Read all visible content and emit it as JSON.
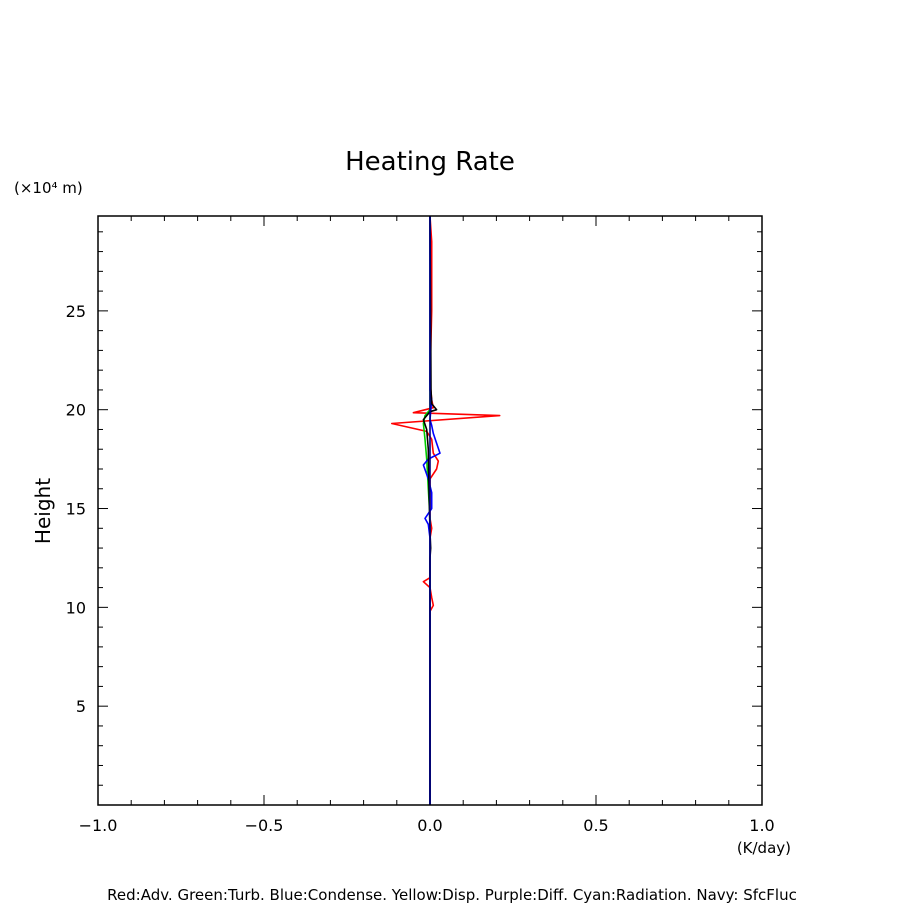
{
  "chart_data": {
    "type": "line",
    "title": "Heating Rate",
    "ylabel": "Height",
    "y_unit": "(×10⁴ m)",
    "x_unit": "(K/day)",
    "xlim": [
      -1.0,
      1.0
    ],
    "ylim": [
      0,
      29.8
    ],
    "x_ticks": [
      {
        "value": -1.0,
        "label": "−1.0"
      },
      {
        "value": -0.5,
        "label": "−0.5"
      },
      {
        "value": 0.0,
        "label": "0.0"
      },
      {
        "value": 0.5,
        "label": "0.5"
      },
      {
        "value": 1.0,
        "label": "1.0"
      }
    ],
    "y_ticks": [
      {
        "value": 5,
        "label": "5"
      },
      {
        "value": 10,
        "label": "10"
      },
      {
        "value": 15,
        "label": "15"
      },
      {
        "value": 20,
        "label": "20"
      },
      {
        "value": 25,
        "label": "25"
      }
    ],
    "grid": false,
    "legend_text": "Red:Adv. Green:Turb. Blue:Condense. Yellow:Disp. Purple:Diff. Cyan:Radiation. Navy: SfcFluc",
    "series": [
      {
        "color": "#ff0000",
        "points": [
          [
            0.0,
            0.0
          ],
          [
            0.0,
            9.8
          ],
          [
            0.01,
            10.1
          ],
          [
            0.005,
            10.5
          ],
          [
            0.0,
            11.0
          ],
          [
            -0.02,
            11.3
          ],
          [
            0.0,
            11.5
          ],
          [
            0.0,
            13.5
          ],
          [
            0.005,
            14.0
          ],
          [
            0.0,
            14.5
          ],
          [
            0.0,
            16.5
          ],
          [
            0.02,
            17.0
          ],
          [
            0.025,
            17.4
          ],
          [
            0.01,
            17.8
          ],
          [
            0.005,
            18.5
          ],
          [
            -0.01,
            18.9
          ],
          [
            -0.115,
            19.3
          ],
          [
            0.21,
            19.7
          ],
          [
            -0.05,
            19.85
          ],
          [
            0.01,
            20.1
          ],
          [
            0.005,
            20.5
          ],
          [
            0.0,
            21.5
          ],
          [
            0.005,
            25.0
          ],
          [
            0.005,
            28.5
          ],
          [
            0.0,
            29.8
          ]
        ]
      },
      {
        "color": "#00cc00",
        "points": [
          [
            0.0,
            0.0
          ],
          [
            0.0,
            14.5
          ],
          [
            -0.005,
            16.0
          ],
          [
            -0.01,
            17.5
          ],
          [
            -0.015,
            18.5
          ],
          [
            -0.02,
            19.3
          ],
          [
            -0.015,
            19.7
          ],
          [
            -0.005,
            19.9
          ],
          [
            0.0,
            20.0
          ],
          [
            0.0,
            29.8
          ]
        ]
      },
      {
        "color": "#0000ff",
        "points": [
          [
            0.0,
            0.0
          ],
          [
            0.0,
            13.5
          ],
          [
            -0.005,
            14.2
          ],
          [
            -0.015,
            14.5
          ],
          [
            0.005,
            15.0
          ],
          [
            0.005,
            15.8
          ],
          [
            -0.005,
            16.5
          ],
          [
            -0.02,
            17.2
          ],
          [
            -0.005,
            17.5
          ],
          [
            0.03,
            17.8
          ],
          [
            0.02,
            18.3
          ],
          [
            0.01,
            18.8
          ],
          [
            0.005,
            19.2
          ],
          [
            0.0,
            19.5
          ],
          [
            0.005,
            20.5
          ],
          [
            0.0,
            21.0
          ],
          [
            0.0,
            29.8
          ]
        ]
      },
      {
        "color": "#000000",
        "points": [
          [
            0.0,
            0.0
          ],
          [
            0.0,
            12.5
          ],
          [
            0.002,
            13.0
          ],
          [
            0.0,
            13.8
          ],
          [
            -0.003,
            16.0
          ],
          [
            -0.005,
            18.0
          ],
          [
            -0.01,
            19.0
          ],
          [
            -0.02,
            19.5
          ],
          [
            0.0,
            19.9
          ],
          [
            0.02,
            20.0
          ],
          [
            0.005,
            20.3
          ],
          [
            0.003,
            21.0
          ],
          [
            0.002,
            24.0
          ],
          [
            0.0,
            29.8
          ]
        ]
      },
      {
        "color": "#000080",
        "points": [
          [
            0.0,
            0.0
          ],
          [
            0.0,
            29.8
          ]
        ]
      }
    ]
  }
}
